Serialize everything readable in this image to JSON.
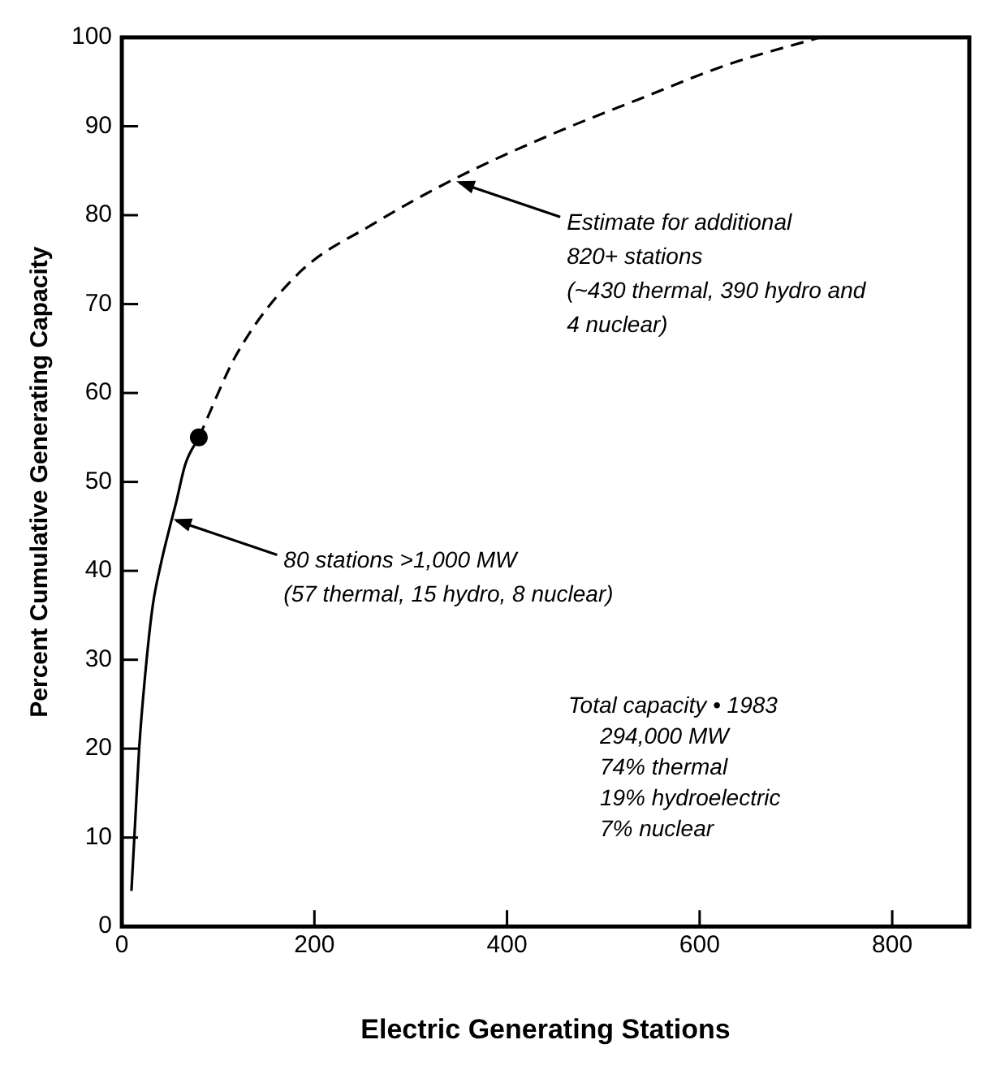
{
  "chart_data": {
    "type": "line",
    "xlabel": "Electric Generating Stations",
    "ylabel": "Percent Cumulative Generating Capacity",
    "xlim": [
      0,
      880
    ],
    "ylim": [
      0,
      100
    ],
    "xticks": [
      0,
      200,
      400,
      600,
      800
    ],
    "yticks": [
      0,
      10,
      20,
      30,
      40,
      50,
      60,
      70,
      80,
      90,
      100
    ],
    "grid": false,
    "legend": false,
    "series": [
      {
        "type": "line",
        "color": "#000000",
        "line_style": "solid",
        "marker": "none",
        "x": [
          10,
          14,
          18,
          24,
          32,
          40,
          50,
          56,
          66,
          80
        ],
        "values": [
          4,
          12,
          20,
          28,
          36,
          40.5,
          45,
          47.5,
          52,
          55
        ]
      },
      {
        "type": "line",
        "color": "#000000",
        "line_style": "dashed",
        "marker": "none",
        "x": [
          80,
          120,
          184,
          261,
          344,
          440,
          536,
          631,
          725
        ],
        "values": [
          55,
          64.5,
          73.5,
          79,
          84,
          88.8,
          93,
          97,
          100
        ]
      },
      {
        "type": "scatter",
        "color": "#000000",
        "marker": "circle",
        "x": [
          80
        ],
        "values": [
          55
        ]
      }
    ],
    "annotations": [
      {
        "text": "80 stations >1,000 MW\n(57 thermal, 15 hydro, 8 nuclear)",
        "x": 50,
        "y": 46
      },
      {
        "text": "Estimate for additional\n820+ stations\n(~430 thermal, 390 hydro and\n4 nuclear)",
        "x": 344,
        "y": 84
      },
      "Total capacity • 1983\n     294,000 MW\n     74% thermal\n     19% hydroelectric\n     7% nuclear"
    ]
  }
}
